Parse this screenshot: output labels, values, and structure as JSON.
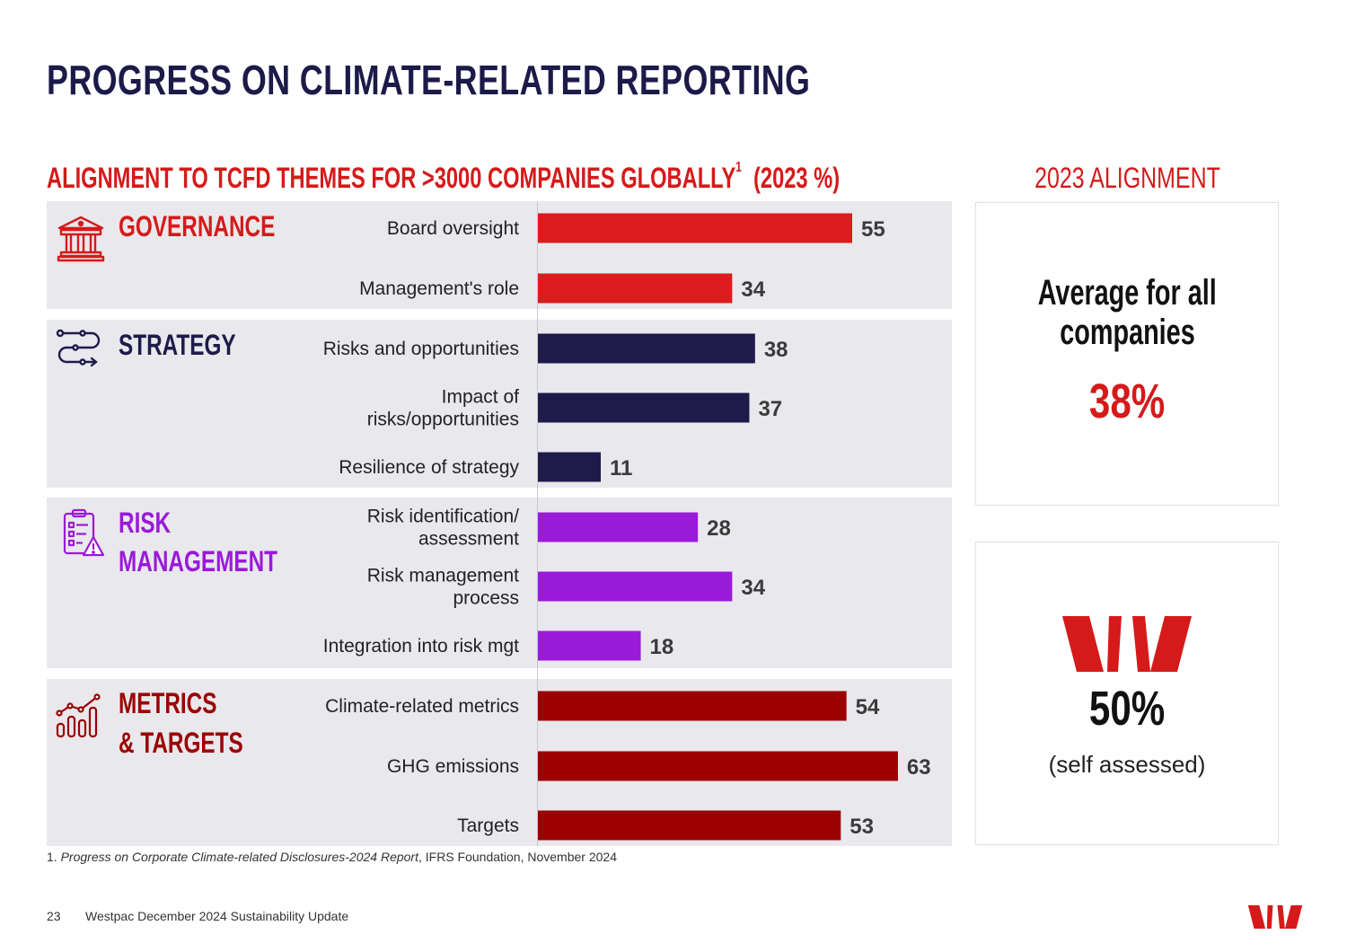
{
  "page": {
    "title": "PROGRESS ON CLIMATE-RELATED REPORTING",
    "chart_heading": "ALIGNMENT TO TCFD THEMES FOR >3000 COMPANIES GLOBALLY",
    "chart_heading_sup": "1",
    "chart_heading_suffix": "(2023 %)",
    "side_heading": "2023 ALIGNMENT",
    "footnote_num": "1.",
    "footnote_title": "Progress on Corporate Climate-related Disclosures-2024 Report",
    "footnote_rest": ", IFRS Foundation, November 2024",
    "page_number": "23",
    "doc_title": "Westpac December 2024 Sustainability Update"
  },
  "themes": {
    "governance": "GOVERNANCE",
    "strategy": "STRATEGY",
    "risk_line1": "RISK",
    "risk_line2": "MANAGEMENT",
    "metrics_line1": "METRICS",
    "metrics_line2": "& TARGETS"
  },
  "side": {
    "avg_label_line1": "Average for all",
    "avg_label_line2": "companies",
    "avg_value": "38%",
    "westpac_value": "50%",
    "westpac_note": "(self assessed)"
  },
  "colors": {
    "governance": "#dc1c1c",
    "strategy": "#1e1b4b",
    "risk": "#9a1ad9",
    "metrics": "#9c0000",
    "brand_red": "#d51a1a"
  },
  "chart_data": {
    "type": "bar",
    "orientation": "horizontal",
    "title": "ALIGNMENT TO TCFD THEMES FOR >3000 COMPANIES GLOBALLY (2023 %)",
    "xlim": [
      0,
      72
    ],
    "series": [
      {
        "name": "Governance",
        "theme": "governance",
        "items": [
          {
            "label": [
              "Board oversight"
            ],
            "value": 55
          },
          {
            "label": [
              "Management's role"
            ],
            "value": 34
          }
        ]
      },
      {
        "name": "Strategy",
        "theme": "strategy",
        "items": [
          {
            "label": [
              "Risks and opportunities"
            ],
            "value": 38
          },
          {
            "label": [
              "Impact of",
              "risks/opportunities"
            ],
            "value": 37
          },
          {
            "label": [
              "Resilience of strategy"
            ],
            "value": 11
          }
        ]
      },
      {
        "name": "Risk Management",
        "theme": "risk",
        "items": [
          {
            "label": [
              "Risk identification/",
              "assessment"
            ],
            "value": 28
          },
          {
            "label": [
              "Risk management",
              "process"
            ],
            "value": 34
          },
          {
            "label": [
              "Integration into risk mgt"
            ],
            "value": 18
          }
        ]
      },
      {
        "name": "Metrics & Targets",
        "theme": "metrics",
        "items": [
          {
            "label": [
              "Climate-related metrics"
            ],
            "value": 54
          },
          {
            "label": [
              "GHG emissions"
            ],
            "value": 63
          },
          {
            "label": [
              "Targets"
            ],
            "value": 53
          }
        ]
      }
    ]
  }
}
